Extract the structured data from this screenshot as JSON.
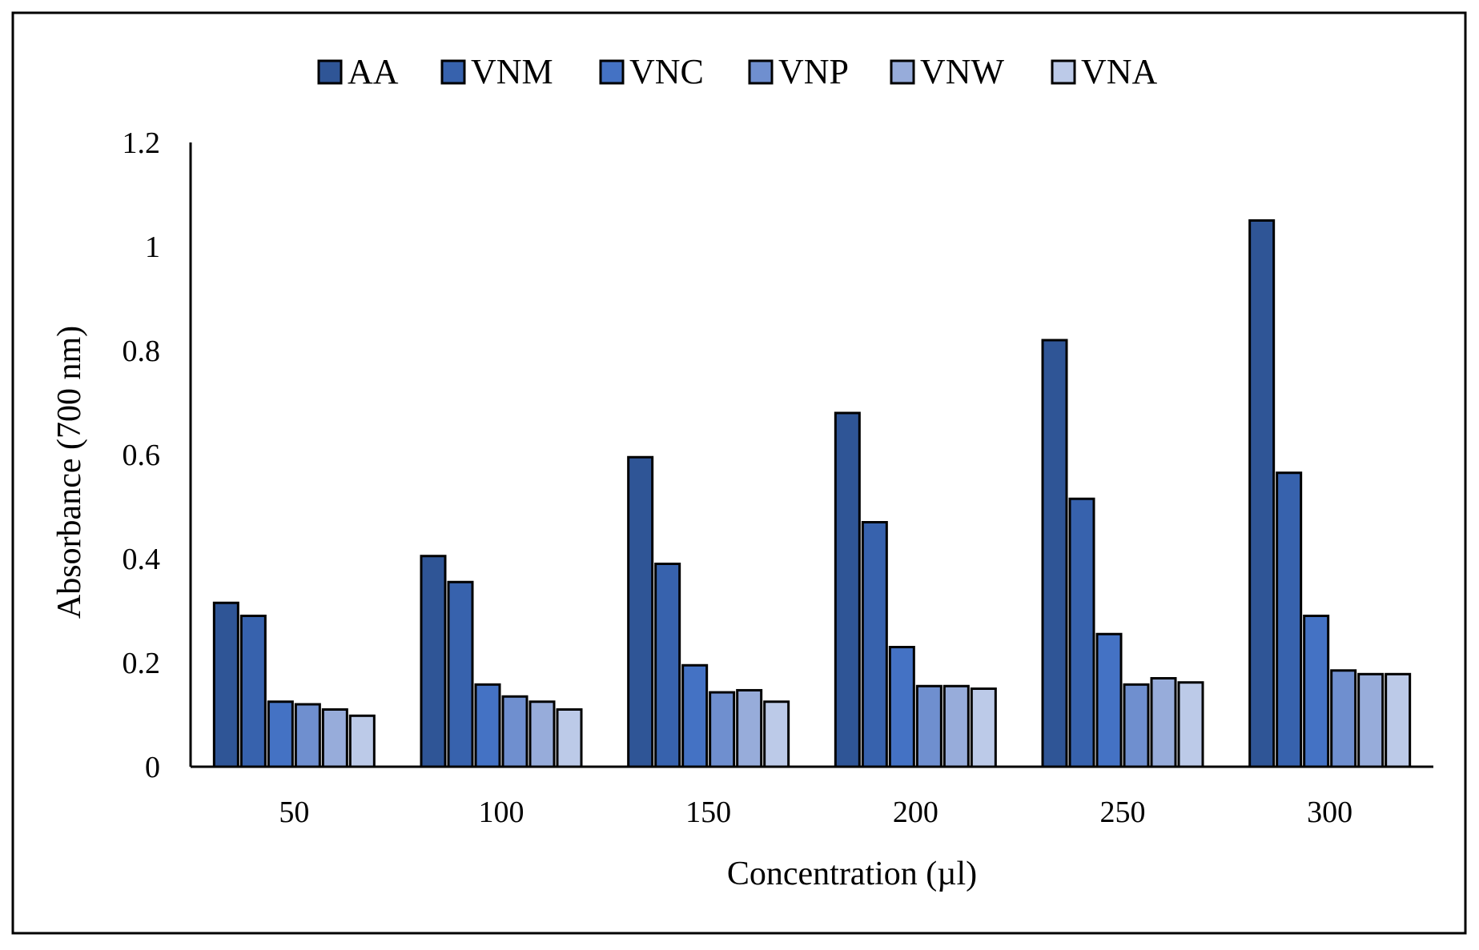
{
  "chart_data": {
    "type": "bar",
    "title": "",
    "xlabel": "Concentration (µl)",
    "ylabel": "Absorbance  (700 nm)",
    "categories": [
      "50",
      "100",
      "150",
      "200",
      "250",
      "300"
    ],
    "ylim": [
      0,
      1.2
    ],
    "yticks": [
      "0",
      "0.2",
      "0.4",
      "0.6",
      "0.8",
      "1",
      "1.2"
    ],
    "grid": false,
    "legend_position": "top",
    "series": [
      {
        "name": "AA",
        "color": "#2f5596",
        "values": [
          0.315,
          0.405,
          0.595,
          0.68,
          0.82,
          1.05
        ]
      },
      {
        "name": "VNM",
        "color": "#3762ad",
        "values": [
          0.29,
          0.355,
          0.39,
          0.47,
          0.515,
          0.565
        ]
      },
      {
        "name": "VNC",
        "color": "#4472c4",
        "values": [
          0.125,
          0.158,
          0.195,
          0.23,
          0.255,
          0.29
        ]
      },
      {
        "name": "VNP",
        "color": "#6f8fcf",
        "values": [
          0.12,
          0.135,
          0.143,
          0.155,
          0.158,
          0.185
        ]
      },
      {
        "name": "VNW",
        "color": "#97acda",
        "values": [
          0.11,
          0.125,
          0.147,
          0.155,
          0.17,
          0.178
        ]
      },
      {
        "name": "VNA",
        "color": "#bccae8",
        "values": [
          0.098,
          0.11,
          0.125,
          0.15,
          0.162,
          0.178
        ]
      }
    ]
  }
}
